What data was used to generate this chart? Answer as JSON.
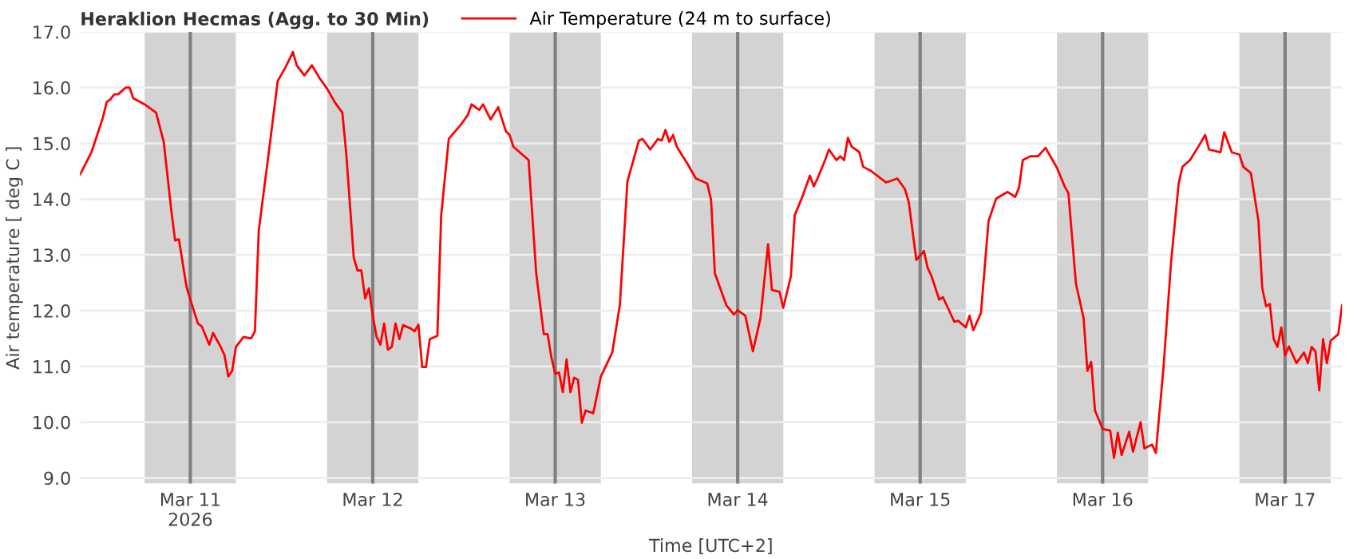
{
  "chart_data": {
    "type": "line",
    "title": "Heraklion Hecmas (Agg. to 30 Min)",
    "xlabel": "Time [UTC+2]",
    "ylabel": "Air temperature [ deg C ]",
    "xlim": [
      "2026-03-10T09:30",
      "2026-03-17T07:30"
    ],
    "xticks": [
      {
        "value": "2026-03-11",
        "label": "Mar 11\n2026"
      },
      {
        "value": "2026-03-12",
        "label": "Mar 12"
      },
      {
        "value": "2026-03-13",
        "label": "Mar 13"
      },
      {
        "value": "2026-03-14",
        "label": "Mar 14"
      },
      {
        "value": "2026-03-15",
        "label": "Mar 15"
      },
      {
        "value": "2026-03-16",
        "label": "Mar 16"
      },
      {
        "value": "2026-03-17",
        "label": "Mar 17"
      }
    ],
    "ylim": [
      8.9,
      17.0
    ],
    "yticks": [
      {
        "value": 9,
        "label": "9.0"
      },
      {
        "value": 10,
        "label": "10.0"
      },
      {
        "value": 11,
        "label": "11.0"
      },
      {
        "value": 12,
        "label": "12.0"
      },
      {
        "value": 13,
        "label": "13.0"
      },
      {
        "value": 14,
        "label": "14.0"
      },
      {
        "value": 15,
        "label": "15.0"
      },
      {
        "value": 16,
        "label": "16.0"
      },
      {
        "value": 17,
        "label": "17.0"
      }
    ],
    "grid": "y",
    "legend": "top left",
    "line_style": "solid",
    "marker": "none",
    "bands": [
      {
        "axis": "x",
        "from": "2026-03-10T18:00",
        "to": "2026-03-11T06:00",
        "color": "#d3d3d3"
      },
      {
        "axis": "x",
        "from": "2026-03-11T18:00",
        "to": "2026-03-12T06:00",
        "color": "#d3d3d3"
      },
      {
        "axis": "x",
        "from": "2026-03-12T18:00",
        "to": "2026-03-13T06:00",
        "color": "#d3d3d3"
      },
      {
        "axis": "x",
        "from": "2026-03-13T18:00",
        "to": "2026-03-14T06:00",
        "color": "#d3d3d3"
      },
      {
        "axis": "x",
        "from": "2026-03-14T18:00",
        "to": "2026-03-15T06:00",
        "color": "#d3d3d3"
      },
      {
        "axis": "x",
        "from": "2026-03-15T18:00",
        "to": "2026-03-16T06:00",
        "color": "#d3d3d3"
      },
      {
        "axis": "x",
        "from": "2026-03-16T18:00",
        "to": "2026-03-17T06:00",
        "color": "#d3d3d3"
      }
    ],
    "ref_lines": [
      {
        "axis": "x",
        "value": "2026-03-11",
        "color": "#808080"
      },
      {
        "axis": "x",
        "value": "2026-03-12",
        "color": "#808080"
      },
      {
        "axis": "x",
        "value": "2026-03-13",
        "color": "#808080"
      },
      {
        "axis": "x",
        "value": "2026-03-14",
        "color": "#808080"
      },
      {
        "axis": "x",
        "value": "2026-03-15",
        "color": "#808080"
      },
      {
        "axis": "x",
        "value": "2026-03-16",
        "color": "#808080"
      },
      {
        "axis": "x",
        "value": "2026-03-17",
        "color": "#808080"
      }
    ],
    "series": [
      {
        "name": "Air Temperature (24 m to surface)",
        "color": "#ff0000",
        "x": [
          "2026-03-10T09:30",
          "2026-03-10T11:00",
          "2026-03-10T12:30",
          "2026-03-10T13:00",
          "2026-03-10T13:30",
          "2026-03-10T14:00",
          "2026-03-10T14:30",
          "2026-03-10T15:30",
          "2026-03-10T16:00",
          "2026-03-10T16:30",
          "2026-03-10T18:00",
          "2026-03-10T19:30",
          "2026-03-10T20:30",
          "2026-03-10T21:30",
          "2026-03-10T22:00",
          "2026-03-10T22:30",
          "2026-03-10T23:30",
          "2026-03-11T00:00",
          "2026-03-11T01:00",
          "2026-03-11T01:30",
          "2026-03-11T02:30",
          "2026-03-11T03:00",
          "2026-03-11T04:00",
          "2026-03-11T04:30",
          "2026-03-11T05:00",
          "2026-03-11T05:30",
          "2026-03-11T06:00",
          "2026-03-11T07:00",
          "2026-03-11T08:00",
          "2026-03-11T08:30",
          "2026-03-11T09:00",
          "2026-03-11T10:30",
          "2026-03-11T11:30",
          "2026-03-11T12:30",
          "2026-03-11T13:30",
          "2026-03-11T14:00",
          "2026-03-11T15:00",
          "2026-03-11T16:00",
          "2026-03-11T17:00",
          "2026-03-11T18:00",
          "2026-03-11T19:00",
          "2026-03-11T20:00",
          "2026-03-11T20:30",
          "2026-03-11T21:00",
          "2026-03-11T21:30",
          "2026-03-11T22:00",
          "2026-03-11T22:30",
          "2026-03-11T23:00",
          "2026-03-11T23:30",
          "2026-03-12T00:00",
          "2026-03-12T00:30",
          "2026-03-12T01:00",
          "2026-03-12T01:30",
          "2026-03-12T02:00",
          "2026-03-12T02:30",
          "2026-03-12T03:00",
          "2026-03-12T03:30",
          "2026-03-12T04:00",
          "2026-03-12T05:00",
          "2026-03-12T05:30",
          "2026-03-12T06:00",
          "2026-03-12T06:30",
          "2026-03-12T07:00",
          "2026-03-12T07:30",
          "2026-03-12T08:30",
          "2026-03-12T09:00",
          "2026-03-12T10:00",
          "2026-03-12T11:30",
          "2026-03-12T12:30",
          "2026-03-12T13:00",
          "2026-03-12T14:00",
          "2026-03-12T14:30",
          "2026-03-12T15:30",
          "2026-03-12T16:30",
          "2026-03-12T17:30",
          "2026-03-12T18:00",
          "2026-03-12T18:30",
          "2026-03-12T20:30",
          "2026-03-12T21:30",
          "2026-03-12T22:30",
          "2026-03-12T23:00",
          "2026-03-12T23:30",
          "2026-03-13T00:00",
          "2026-03-13T00:30",
          "2026-03-13T01:00",
          "2026-03-13T01:30",
          "2026-03-13T02:00",
          "2026-03-13T02:30",
          "2026-03-13T03:00",
          "2026-03-13T03:30",
          "2026-03-13T04:00",
          "2026-03-13T05:00",
          "2026-03-13T06:00",
          "2026-03-13T07:30",
          "2026-03-13T08:30",
          "2026-03-13T09:30",
          "2026-03-13T11:00",
          "2026-03-13T11:30",
          "2026-03-13T12:30",
          "2026-03-13T13:30",
          "2026-03-13T14:00",
          "2026-03-13T14:30",
          "2026-03-13T15:00",
          "2026-03-13T15:30",
          "2026-03-13T16:00",
          "2026-03-13T16:30",
          "2026-03-13T17:30",
          "2026-03-13T18:30",
          "2026-03-13T20:00",
          "2026-03-13T20:30",
          "2026-03-13T21:00",
          "2026-03-13T22:30",
          "2026-03-13T23:30",
          "2026-03-14T00:00",
          "2026-03-14T01:00",
          "2026-03-14T02:00",
          "2026-03-14T03:00",
          "2026-03-14T04:00",
          "2026-03-14T04:30",
          "2026-03-14T05:30",
          "2026-03-14T06:00",
          "2026-03-14T07:00",
          "2026-03-14T07:30",
          "2026-03-14T08:30",
          "2026-03-14T09:30",
          "2026-03-14T10:00",
          "2026-03-14T10:30",
          "2026-03-14T11:30",
          "2026-03-14T12:00",
          "2026-03-14T13:00",
          "2026-03-14T13:30",
          "2026-03-14T14:00",
          "2026-03-14T14:30",
          "2026-03-14T15:00",
          "2026-03-14T16:00",
          "2026-03-14T16:30",
          "2026-03-14T17:30",
          "2026-03-14T19:30",
          "2026-03-14T20:00",
          "2026-03-14T21:00",
          "2026-03-14T22:00",
          "2026-03-14T22:30",
          "2026-03-14T23:30",
          "2026-03-15T00:30",
          "2026-03-15T01:00",
          "2026-03-15T01:30",
          "2026-03-15T02:30",
          "2026-03-15T03:00",
          "2026-03-15T04:30",
          "2026-03-15T05:00",
          "2026-03-15T06:00",
          "2026-03-15T06:30",
          "2026-03-15T07:00",
          "2026-03-15T08:00",
          "2026-03-15T09:00",
          "2026-03-15T10:00",
          "2026-03-15T11:30",
          "2026-03-15T12:30",
          "2026-03-15T13:00",
          "2026-03-15T13:30",
          "2026-03-15T14:30",
          "2026-03-15T15:30",
          "2026-03-15T16:30",
          "2026-03-15T18:00",
          "2026-03-15T19:00",
          "2026-03-15T19:30",
          "2026-03-15T20:30",
          "2026-03-15T21:30",
          "2026-03-15T22:00",
          "2026-03-15T22:30",
          "2026-03-15T23:00",
          "2026-03-16T00:00",
          "2026-03-16T01:00",
          "2026-03-16T01:30",
          "2026-03-16T02:00",
          "2026-03-16T02:30",
          "2026-03-16T03:30",
          "2026-03-16T04:00",
          "2026-03-16T05:00",
          "2026-03-16T05:30",
          "2026-03-16T06:30",
          "2026-03-16T07:00",
          "2026-03-16T08:00",
          "2026-03-16T09:00",
          "2026-03-16T10:00",
          "2026-03-16T10:30",
          "2026-03-16T11:30",
          "2026-03-16T12:30",
          "2026-03-16T13:30",
          "2026-03-16T14:00",
          "2026-03-16T15:30",
          "2026-03-16T16:00",
          "2026-03-16T17:00",
          "2026-03-16T18:00",
          "2026-03-16T18:30",
          "2026-03-16T19:30",
          "2026-03-16T20:30",
          "2026-03-16T21:00",
          "2026-03-16T21:30",
          "2026-03-16T22:00",
          "2026-03-16T22:30",
          "2026-03-16T23:00",
          "2026-03-16T23:30",
          "2026-03-17T00:00",
          "2026-03-17T00:30",
          "2026-03-17T01:30",
          "2026-03-17T02:30",
          "2026-03-17T03:00",
          "2026-03-17T03:30",
          "2026-03-17T04:00",
          "2026-03-17T04:30",
          "2026-03-17T05:00",
          "2026-03-17T05:30",
          "2026-03-17T06:00",
          "2026-03-17T07:00",
          "2026-03-17T07:30"
        ],
        "values": [
          14.44,
          14.84,
          15.46,
          15.74,
          15.79,
          15.88,
          15.88,
          16.0,
          16.0,
          15.81,
          15.7,
          15.55,
          15.03,
          13.8,
          13.26,
          13.28,
          12.43,
          12.2,
          11.77,
          11.72,
          11.39,
          11.6,
          11.35,
          11.2,
          10.82,
          10.92,
          11.35,
          11.53,
          11.5,
          11.63,
          13.43,
          15.03,
          16.12,
          16.36,
          16.64,
          16.4,
          16.22,
          16.4,
          16.17,
          15.98,
          15.74,
          15.55,
          14.84,
          13.9,
          12.95,
          12.72,
          12.72,
          12.22,
          12.4,
          11.91,
          11.53,
          11.39,
          11.77,
          11.3,
          11.35,
          11.77,
          11.49,
          11.74,
          11.68,
          11.63,
          11.75,
          10.99,
          10.99,
          11.49,
          11.55,
          13.71,
          15.08,
          15.32,
          15.51,
          15.7,
          15.6,
          15.7,
          15.43,
          15.65,
          15.22,
          15.15,
          14.94,
          14.7,
          12.67,
          11.58,
          11.58,
          11.16,
          10.87,
          10.89,
          10.54,
          11.13,
          10.54,
          10.8,
          10.76,
          9.99,
          10.21,
          10.16,
          10.82,
          11.25,
          12.1,
          14.32,
          15.05,
          15.08,
          14.89,
          15.08,
          15.05,
          15.24,
          15.03,
          15.15,
          14.94,
          14.83,
          14.61,
          14.37,
          14.28,
          13.99,
          12.67,
          12.1,
          11.93,
          12.01,
          11.91,
          11.27,
          11.87,
          13.19,
          12.37,
          12.34,
          12.05,
          12.62,
          13.71,
          14.04,
          14.42,
          14.23,
          14.37,
          14.7,
          14.89,
          14.7,
          14.77,
          14.7,
          15.1,
          14.94,
          14.84,
          14.58,
          14.51,
          14.3,
          14.32,
          14.37,
          14.18,
          13.95,
          12.91,
          13.07,
          12.76,
          12.62,
          12.2,
          12.24,
          11.8,
          11.82,
          11.7,
          11.91,
          11.65,
          11.96,
          13.61,
          14.01,
          14.13,
          14.04,
          14.2,
          14.7,
          14.77,
          14.77,
          14.92,
          14.56,
          14.23,
          14.11,
          12.48,
          11.87,
          10.92,
          11.08,
          10.21,
          9.88,
          9.85,
          9.36,
          9.81,
          9.41,
          9.83,
          9.47,
          10.0,
          9.53,
          9.6,
          9.45,
          10.96,
          12.86,
          14.28,
          14.58,
          14.7,
          14.92,
          15.15,
          14.89,
          14.84,
          15.2,
          14.84,
          14.8,
          14.58,
          14.47,
          13.61,
          12.41,
          12.08,
          12.12,
          11.49,
          11.35,
          11.7,
          11.2,
          11.36,
          11.06,
          11.25,
          11.06,
          11.35,
          11.27,
          10.57,
          11.49,
          11.06,
          11.46,
          11.58,
          12.1
        ]
      }
    ]
  }
}
